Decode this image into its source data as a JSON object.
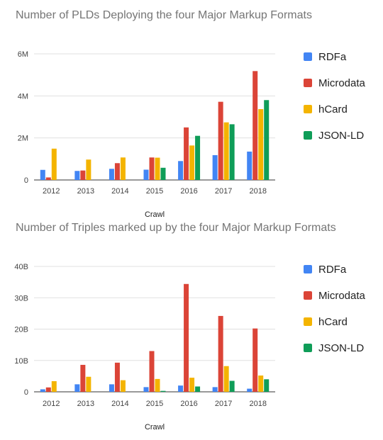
{
  "colors": {
    "RDFa": "#4285f4",
    "Microdata": "#db4437",
    "hCard": "#f4b400",
    "JSON-LD": "#0f9d58"
  },
  "chart_data": [
    {
      "type": "bar",
      "title": "Number of PLDs Deploying the four Major Markup Formats",
      "xlabel": "Crawl",
      "ylabel": "",
      "ylim": [
        0,
        6000000
      ],
      "yticks": [
        0,
        2000000,
        4000000,
        6000000
      ],
      "ytick_labels": [
        "0",
        "2M",
        "4M",
        "6M"
      ],
      "grid": true,
      "legend_position": "right",
      "categories": [
        "2012",
        "2013",
        "2014",
        "2015",
        "2016",
        "2017",
        "2018"
      ],
      "series": [
        {
          "name": "RDFa",
          "values": [
            480000,
            430000,
            530000,
            490000,
            900000,
            1180000,
            1350000
          ]
        },
        {
          "name": "Microdata",
          "values": [
            120000,
            450000,
            800000,
            1070000,
            2500000,
            3720000,
            5180000
          ]
        },
        {
          "name": "hCard",
          "values": [
            1490000,
            970000,
            1070000,
            1060000,
            1640000,
            2740000,
            3370000
          ]
        },
        {
          "name": "JSON-LD",
          "values": [
            0,
            0,
            0,
            580000,
            2100000,
            2650000,
            3800000
          ]
        }
      ]
    },
    {
      "type": "bar",
      "title": "Number of Triples marked up by the four Major Markup Formats",
      "xlabel": "Crawl",
      "ylabel": "",
      "ylim": [
        0,
        40000000000
      ],
      "yticks": [
        0,
        10000000000,
        20000000000,
        30000000000,
        40000000000
      ],
      "ytick_labels": [
        "0",
        "10B",
        "20B",
        "30B",
        "40B"
      ],
      "grid": true,
      "legend_position": "right",
      "categories": [
        "2012",
        "2013",
        "2014",
        "2015",
        "2016",
        "2017",
        "2018"
      ],
      "series": [
        {
          "name": "RDFa",
          "values": [
            800000000,
            2400000000,
            2400000000,
            1500000000,
            2000000000,
            1500000000,
            1000000000
          ]
        },
        {
          "name": "Microdata",
          "values": [
            1400000000,
            8600000000,
            9300000000,
            13000000000,
            34400000000,
            24200000000,
            20200000000
          ]
        },
        {
          "name": "hCard",
          "values": [
            3400000000,
            4800000000,
            3700000000,
            4100000000,
            4500000000,
            8200000000,
            5200000000
          ]
        },
        {
          "name": "JSON-LD",
          "values": [
            0,
            0,
            0,
            300000000,
            1700000000,
            3500000000,
            4000000000
          ]
        }
      ]
    }
  ]
}
